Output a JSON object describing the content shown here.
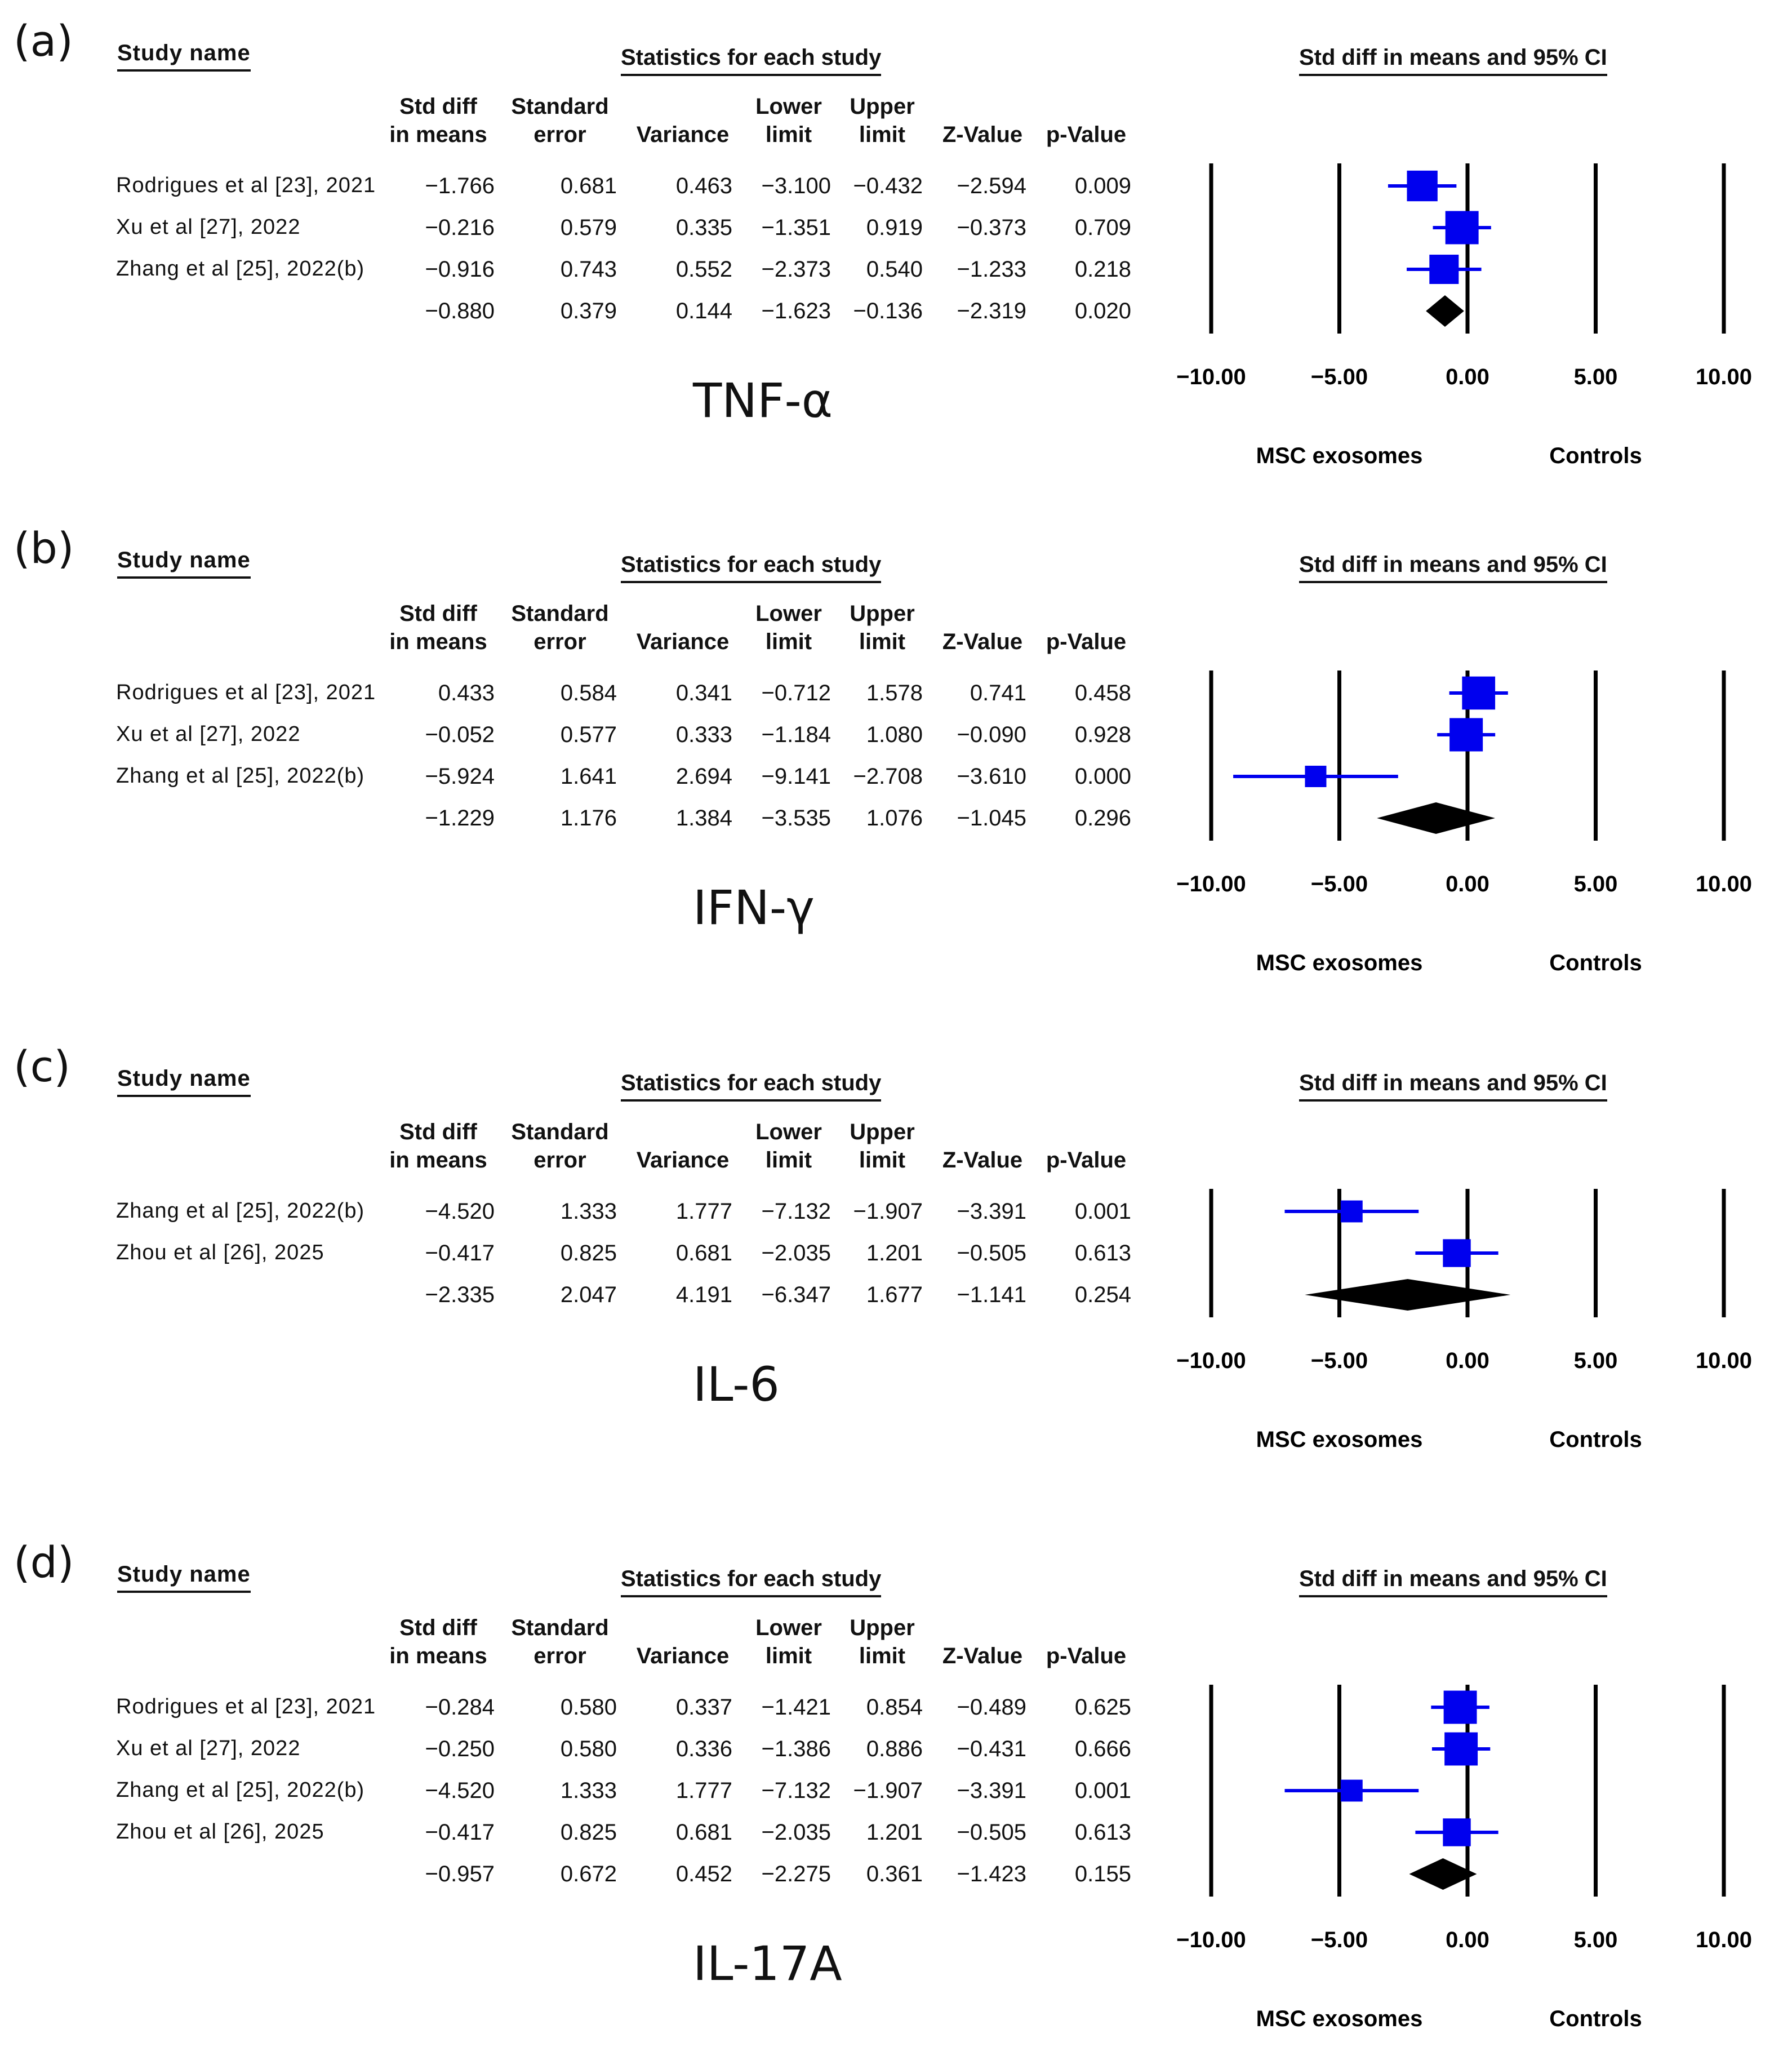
{
  "chart_data": [
    {
      "type": "forest",
      "panel_label": "(a)",
      "cytokine": "TNF-α",
      "headers": {
        "study_name": "Study name",
        "statistics": "Statistics for each study",
        "ci": "Std diff in means and 95% CI",
        "columns": [
          "Std diff\nin means",
          "Standard\nerror",
          "Variance",
          "Lower\nlimit",
          "Upper\nlimit",
          "Z-Value",
          "p-Value"
        ]
      },
      "rows": [
        {
          "study": "Rodrigues et al [23], 2021",
          "smd": -1.766,
          "se": 0.681,
          "var": 0.463,
          "lower": -3.1,
          "upper": -0.432,
          "z": -2.594,
          "p": 0.009,
          "text": [
            "−1.766",
            "0.681",
            "0.463",
            "−3.100",
            "−0.432",
            "−2.594",
            "0.009"
          ]
        },
        {
          "study": "Xu et al [27], 2022",
          "smd": -0.216,
          "se": 0.579,
          "var": 0.335,
          "lower": -1.351,
          "upper": 0.919,
          "z": -0.373,
          "p": 0.709,
          "text": [
            "−0.216",
            "0.579",
            "0.335",
            "−1.351",
            "0.919",
            "−0.373",
            "0.709"
          ]
        },
        {
          "study": "Zhang et al [25], 2022(b)",
          "smd": -0.916,
          "se": 0.743,
          "var": 0.552,
          "lower": -2.373,
          "upper": 0.54,
          "z": -1.233,
          "p": 0.218,
          "text": [
            "−0.916",
            "0.743",
            "0.552",
            "−2.373",
            "0.540",
            "−1.233",
            "0.218"
          ]
        }
      ],
      "pooled": {
        "smd": -0.88,
        "se": 0.379,
        "var": 0.144,
        "lower": -1.623,
        "upper": -0.136,
        "z": -2.319,
        "p": 0.02,
        "text": [
          "−0.880",
          "0.379",
          "0.144",
          "−1.623",
          "−0.136",
          "−2.319",
          "0.020"
        ]
      },
      "xlim": [
        -10,
        10
      ],
      "xticks": [
        -10,
        -5,
        0,
        5,
        10
      ],
      "xtick_labels": [
        "−10.00",
        "−5.00",
        "0.00",
        "5.00",
        "10.00"
      ],
      "left_label": "MSC exosomes",
      "right_label": "Controls"
    },
    {
      "type": "forest",
      "panel_label": "(b)",
      "cytokine": "IFN-γ",
      "headers": {
        "study_name": "Study name",
        "statistics": "Statistics for each study",
        "ci": "Std diff in means and 95% CI",
        "columns": [
          "Std diff\nin means",
          "Standard\nerror",
          "Variance",
          "Lower\nlimit",
          "Upper\nlimit",
          "Z-Value",
          "p-Value"
        ]
      },
      "rows": [
        {
          "study": "Rodrigues et al [23], 2021",
          "smd": 0.433,
          "se": 0.584,
          "var": 0.341,
          "lower": -0.712,
          "upper": 1.578,
          "z": 0.741,
          "p": 0.458,
          "text": [
            "0.433",
            "0.584",
            "0.341",
            "−0.712",
            "1.578",
            "0.741",
            "0.458"
          ]
        },
        {
          "study": "Xu et al [27], 2022",
          "smd": -0.052,
          "se": 0.577,
          "var": 0.333,
          "lower": -1.184,
          "upper": 1.08,
          "z": -0.09,
          "p": 0.928,
          "text": [
            "−0.052",
            "0.577",
            "0.333",
            "−1.184",
            "1.080",
            "−0.090",
            "0.928"
          ]
        },
        {
          "study": "Zhang et al [25], 2022(b)",
          "smd": -5.924,
          "se": 1.641,
          "var": 2.694,
          "lower": -9.141,
          "upper": -2.708,
          "z": -3.61,
          "p": 0.0,
          "text": [
            "−5.924",
            "1.641",
            "2.694",
            "−9.141",
            "−2.708",
            "−3.610",
            "0.000"
          ]
        }
      ],
      "pooled": {
        "smd": -1.229,
        "se": 1.176,
        "var": 1.384,
        "lower": -3.535,
        "upper": 1.076,
        "z": -1.045,
        "p": 0.296,
        "text": [
          "−1.229",
          "1.176",
          "1.384",
          "−3.535",
          "1.076",
          "−1.045",
          "0.296"
        ]
      },
      "xlim": [
        -10,
        10
      ],
      "xticks": [
        -10,
        -5,
        0,
        5,
        10
      ],
      "xtick_labels": [
        "−10.00",
        "−5.00",
        "0.00",
        "5.00",
        "10.00"
      ],
      "left_label": "MSC exosomes",
      "right_label": "Controls"
    },
    {
      "type": "forest",
      "panel_label": "(c)",
      "cytokine": "IL-6",
      "headers": {
        "study_name": "Study name",
        "statistics": "Statistics for each study",
        "ci": "Std diff in means and 95% CI",
        "columns": [
          "Std diff\nin means",
          "Standard\nerror",
          "Variance",
          "Lower\nlimit",
          "Upper\nlimit",
          "Z-Value",
          "p-Value"
        ]
      },
      "rows": [
        {
          "study": "Zhang et al [25], 2022(b)",
          "smd": -4.52,
          "se": 1.333,
          "var": 1.777,
          "lower": -7.132,
          "upper": -1.907,
          "z": -3.391,
          "p": 0.001,
          "text": [
            "−4.520",
            "1.333",
            "1.777",
            "−7.132",
            "−1.907",
            "−3.391",
            "0.001"
          ]
        },
        {
          "study": "Zhou et al [26], 2025",
          "smd": -0.417,
          "se": 0.825,
          "var": 0.681,
          "lower": -2.035,
          "upper": 1.201,
          "z": -0.505,
          "p": 0.613,
          "text": [
            "−0.417",
            "0.825",
            "0.681",
            "−2.035",
            "1.201",
            "−0.505",
            "0.613"
          ]
        }
      ],
      "pooled": {
        "smd": -2.335,
        "se": 2.047,
        "var": 4.191,
        "lower": -6.347,
        "upper": 1.677,
        "z": -1.141,
        "p": 0.254,
        "text": [
          "−2.335",
          "2.047",
          "4.191",
          "−6.347",
          "1.677",
          "−1.141",
          "0.254"
        ]
      },
      "xlim": [
        -10,
        10
      ],
      "xticks": [
        -10,
        -5,
        0,
        5,
        10
      ],
      "xtick_labels": [
        "−10.00",
        "−5.00",
        "0.00",
        "5.00",
        "10.00"
      ],
      "left_label": "MSC exosomes",
      "right_label": "Controls"
    },
    {
      "type": "forest",
      "panel_label": "(d)",
      "cytokine": "IL-17A",
      "headers": {
        "study_name": "Study name",
        "statistics": "Statistics for each study",
        "ci": "Std diff in means and 95% CI",
        "columns": [
          "Std diff\nin means",
          "Standard\nerror",
          "Variance",
          "Lower\nlimit",
          "Upper\nlimit",
          "Z-Value",
          "p-Value"
        ]
      },
      "rows": [
        {
          "study": "Rodrigues et al [23], 2021",
          "smd": -0.284,
          "se": 0.58,
          "var": 0.337,
          "lower": -1.421,
          "upper": 0.854,
          "z": -0.489,
          "p": 0.625,
          "text": [
            "−0.284",
            "0.580",
            "0.337",
            "−1.421",
            "0.854",
            "−0.489",
            "0.625"
          ]
        },
        {
          "study": "Xu et al [27], 2022",
          "smd": -0.25,
          "se": 0.58,
          "var": 0.336,
          "lower": -1.386,
          "upper": 0.886,
          "z": -0.431,
          "p": 0.666,
          "text": [
            "−0.250",
            "0.580",
            "0.336",
            "−1.386",
            "0.886",
            "−0.431",
            "0.666"
          ]
        },
        {
          "study": "Zhang et al [25], 2022(b)",
          "smd": -4.52,
          "se": 1.333,
          "var": 1.777,
          "lower": -7.132,
          "upper": -1.907,
          "z": -3.391,
          "p": 0.001,
          "text": [
            "−4.520",
            "1.333",
            "1.777",
            "−7.132",
            "−1.907",
            "−3.391",
            "0.001"
          ]
        },
        {
          "study": "Zhou et al [26], 2025",
          "smd": -0.417,
          "se": 0.825,
          "var": 0.681,
          "lower": -2.035,
          "upper": 1.201,
          "z": -0.505,
          "p": 0.613,
          "text": [
            "−0.417",
            "0.825",
            "0.681",
            "−2.035",
            "1.201",
            "−0.505",
            "0.613"
          ]
        }
      ],
      "pooled": {
        "smd": -0.957,
        "se": 0.672,
        "var": 0.452,
        "lower": -2.275,
        "upper": 0.361,
        "z": -1.423,
        "p": 0.155,
        "text": [
          "−0.957",
          "0.672",
          "0.452",
          "−2.275",
          "0.361",
          "−1.423",
          "0.155"
        ]
      },
      "xlim": [
        -10,
        10
      ],
      "xticks": [
        -10,
        -5,
        0,
        5,
        10
      ],
      "xtick_labels": [
        "−10.00",
        "−5.00",
        "0.00",
        "5.00",
        "10.00"
      ],
      "left_label": "MSC exosomes",
      "right_label": "Controls"
    }
  ],
  "colors": {
    "study_marker": "#0000ee",
    "pooled_marker": "#000000",
    "axis": "#000000"
  }
}
